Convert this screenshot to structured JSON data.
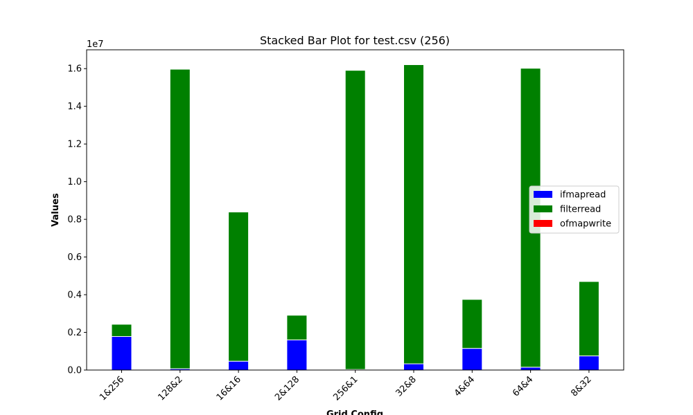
{
  "chart_data": {
    "type": "bar",
    "stacked": true,
    "title": "Stacked Bar Plot for test.csv (256)",
    "xlabel": "Grid Config",
    "ylabel": "Values",
    "y_offset_text": "1e7",
    "y_scale": 10000000,
    "ylim": [
      0,
      17000000
    ],
    "yticks": [
      0,
      2000000,
      4000000,
      6000000,
      8000000,
      10000000,
      12000000,
      14000000,
      16000000
    ],
    "ytick_labels": [
      "0.0",
      "0.2",
      "0.4",
      "0.6",
      "0.8",
      "1.0",
      "1.2",
      "1.4",
      "1.6"
    ],
    "grid": false,
    "legend_position": "center-right",
    "categories": [
      "1&256",
      "128&2",
      "16&16",
      "2&128",
      "256&1",
      "32&8",
      "4&64",
      "64&4",
      "8&32"
    ],
    "series": [
      {
        "name": "ifmapread",
        "color": "#0000ff",
        "values": [
          1780000,
          70000,
          470000,
          1600000,
          30000,
          330000,
          1150000,
          150000,
          750000
        ]
      },
      {
        "name": "filterread",
        "color": "#008000",
        "values": [
          650000,
          15900000,
          7920000,
          1310000,
          15880000,
          15880000,
          2600000,
          15870000,
          3950000
        ]
      },
      {
        "name": "ofmapwrite",
        "color": "#ff0000",
        "values": [
          0,
          0,
          0,
          0,
          0,
          0,
          0,
          0,
          0
        ]
      }
    ]
  }
}
